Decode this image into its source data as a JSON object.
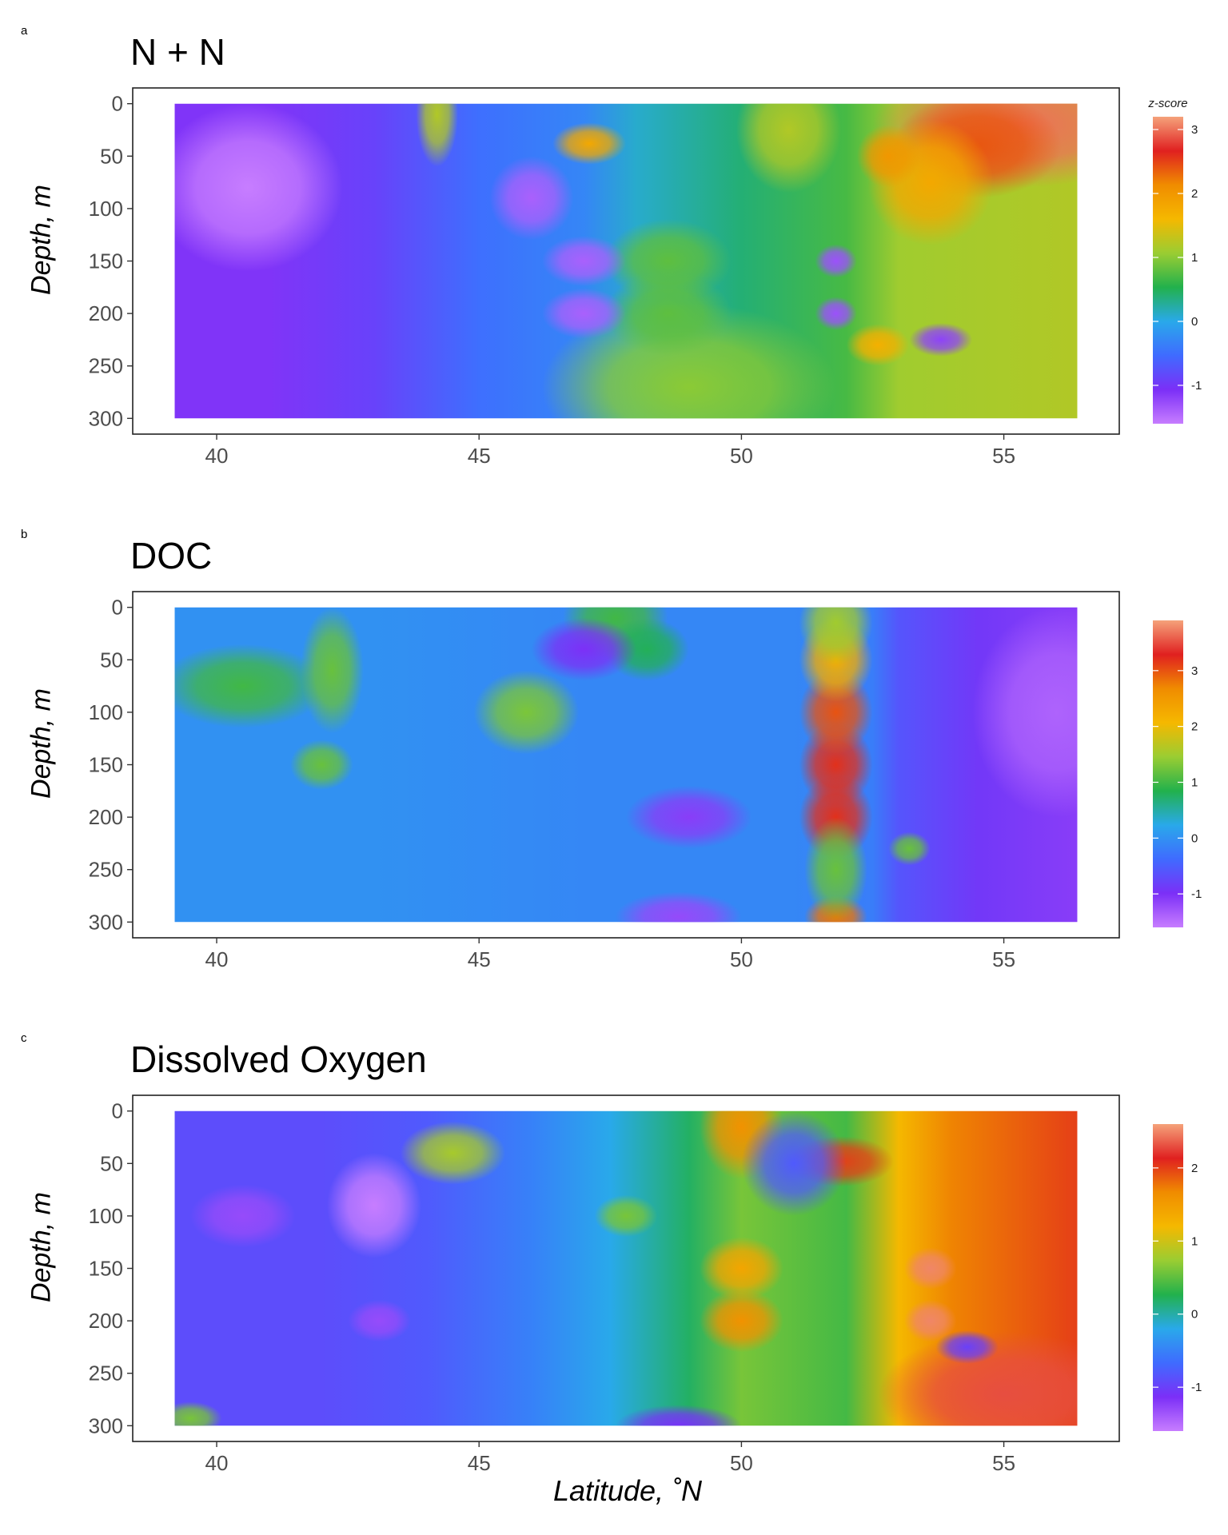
{
  "figure": {
    "xlabel": "Latitude, ˚N",
    "colorbar_title": "z-score"
  },
  "colors": {
    "scale": [
      "#c77dff",
      "#7b2ff7",
      "#3f6bff",
      "#29a9ea",
      "#22b14c",
      "#9acd32",
      "#f5b800",
      "#f08c00",
      "#e02020",
      "#f5a27a"
    ]
  },
  "chart_data": [
    {
      "panel_letter": "a",
      "type": "heatmap",
      "title": "N + N",
      "xlabel": "",
      "ylabel": "Depth, m",
      "x_ticks": [
        40,
        45,
        50,
        55
      ],
      "y_ticks": [
        0,
        50,
        100,
        150,
        200,
        250,
        300
      ],
      "xlim": [
        38.4,
        57.2
      ],
      "ylim": [
        315,
        -15
      ],
      "colorbar_ticks": [
        3,
        2,
        1,
        0,
        -1
      ],
      "zlim": [
        -1.6,
        3.2
      ],
      "background": [
        {
          "lat": 39.2,
          "z": -1.1
        },
        {
          "lat": 41.0,
          "z": -1.1
        },
        {
          "lat": 43.0,
          "z": -0.9
        },
        {
          "lat": 45.0,
          "z": -0.5
        },
        {
          "lat": 47.0,
          "z": -0.3
        },
        {
          "lat": 48.0,
          "z": 0.1
        },
        {
          "lat": 50.0,
          "z": 0.4
        },
        {
          "lat": 52.0,
          "z": 0.7
        },
        {
          "lat": 53.0,
          "z": 1.1
        },
        {
          "lat": 56.4,
          "z": 1.2
        }
      ],
      "hotspots": [
        {
          "lat": 55.3,
          "depth": 20,
          "z": 3.0,
          "dlat": 1.4,
          "ddepth": 30
        },
        {
          "lat": 54.5,
          "depth": 40,
          "z": 2.4,
          "dlat": 0.8,
          "ddepth": 25
        },
        {
          "lat": 53.6,
          "depth": 75,
          "z": 1.8,
          "dlat": 0.6,
          "ddepth": 30
        },
        {
          "lat": 52.8,
          "depth": 50,
          "z": 2.0,
          "dlat": 0.3,
          "ddepth": 15
        },
        {
          "lat": 52.6,
          "depth": 230,
          "z": 1.7,
          "dlat": 0.3,
          "ddepth": 10
        },
        {
          "lat": 47.1,
          "depth": 38,
          "z": 1.8,
          "dlat": 0.35,
          "ddepth": 10
        },
        {
          "lat": 50.9,
          "depth": 25,
          "z": 1.2,
          "dlat": 0.5,
          "ddepth": 30
        },
        {
          "lat": 44.2,
          "depth": 10,
          "z": 1.2,
          "dlat": 0.2,
          "ddepth": 25
        },
        {
          "lat": 49.0,
          "depth": 270,
          "z": 1.0,
          "dlat": 1.4,
          "ddepth": 40
        },
        {
          "lat": 48.6,
          "depth": 150,
          "z": 0.8,
          "dlat": 0.6,
          "ddepth": 20
        },
        {
          "lat": 48.6,
          "depth": 200,
          "z": 0.8,
          "dlat": 0.6,
          "ddepth": 20
        },
        {
          "lat": 40.6,
          "depth": 80,
          "z": -1.6,
          "dlat": 0.9,
          "ddepth": 40
        },
        {
          "lat": 46.0,
          "depth": 90,
          "z": -1.4,
          "dlat": 0.4,
          "ddepth": 20
        },
        {
          "lat": 47.0,
          "depth": 150,
          "z": -1.4,
          "dlat": 0.4,
          "ddepth": 12
        },
        {
          "lat": 47.0,
          "depth": 200,
          "z": -1.4,
          "dlat": 0.4,
          "ddepth": 12
        },
        {
          "lat": 51.8,
          "depth": 150,
          "z": -1.3,
          "dlat": 0.2,
          "ddepth": 8
        },
        {
          "lat": 51.8,
          "depth": 200,
          "z": -1.3,
          "dlat": 0.2,
          "ddepth": 8
        },
        {
          "lat": 53.8,
          "depth": 225,
          "z": -1.2,
          "dlat": 0.3,
          "ddepth": 8
        }
      ]
    },
    {
      "panel_letter": "b",
      "type": "heatmap",
      "title": "DOC",
      "xlabel": "",
      "ylabel": "Depth, m",
      "x_ticks": [
        40,
        45,
        50,
        55
      ],
      "y_ticks": [
        0,
        50,
        100,
        150,
        200,
        250,
        300
      ],
      "xlim": [
        38.4,
        57.2
      ],
      "ylim": [
        315,
        -15
      ],
      "colorbar_ticks": [
        3,
        2,
        1,
        0,
        -1
      ],
      "zlim": [
        -1.6,
        3.9
      ],
      "background": [
        {
          "lat": 39.2,
          "z": 0.0
        },
        {
          "lat": 43.0,
          "z": 0.0
        },
        {
          "lat": 47.0,
          "z": -0.1
        },
        {
          "lat": 49.0,
          "z": -0.1
        },
        {
          "lat": 51.0,
          "z": -0.1
        },
        {
          "lat": 52.5,
          "z": -0.2
        },
        {
          "lat": 53.0,
          "z": -0.6
        },
        {
          "lat": 54.5,
          "z": -0.9
        },
        {
          "lat": 56.4,
          "z": -1.1
        }
      ],
      "hotspots": [
        {
          "lat": 51.8,
          "depth": 150,
          "z": 3.2,
          "dlat": 0.35,
          "ddepth": 20
        },
        {
          "lat": 51.8,
          "depth": 200,
          "z": 3.2,
          "dlat": 0.35,
          "ddepth": 20
        },
        {
          "lat": 51.8,
          "depth": 100,
          "z": 3.0,
          "dlat": 0.35,
          "ddepth": 20
        },
        {
          "lat": 51.8,
          "depth": 50,
          "z": 2.2,
          "dlat": 0.35,
          "ddepth": 20
        },
        {
          "lat": 51.8,
          "depth": 295,
          "z": 2.8,
          "dlat": 0.3,
          "ddepth": 10
        },
        {
          "lat": 51.8,
          "depth": 15,
          "z": 1.5,
          "dlat": 0.35,
          "ddepth": 20
        },
        {
          "lat": 51.8,
          "depth": 250,
          "z": 1.2,
          "dlat": 0.3,
          "ddepth": 25
        },
        {
          "lat": 45.9,
          "depth": 100,
          "z": 1.3,
          "dlat": 0.5,
          "ddepth": 20
        },
        {
          "lat": 40.5,
          "depth": 75,
          "z": 1.0,
          "dlat": 0.8,
          "ddepth": 20
        },
        {
          "lat": 42.2,
          "depth": 60,
          "z": 1.2,
          "dlat": 0.3,
          "ddepth": 30
        },
        {
          "lat": 42.0,
          "depth": 150,
          "z": 1.2,
          "dlat": 0.3,
          "ddepth": 12
        },
        {
          "lat": 47.6,
          "depth": 10,
          "z": 1.0,
          "dlat": 0.5,
          "ddepth": 20
        },
        {
          "lat": 48.2,
          "depth": 40,
          "z": 0.8,
          "dlat": 0.4,
          "ddepth": 15
        },
        {
          "lat": 53.2,
          "depth": 230,
          "z": 1.2,
          "dlat": 0.2,
          "ddepth": 8
        },
        {
          "lat": 49.0,
          "depth": 200,
          "z": -1.1,
          "dlat": 0.6,
          "ddepth": 15
        },
        {
          "lat": 48.8,
          "depth": 295,
          "z": -1.2,
          "dlat": 0.6,
          "ddepth": 12
        },
        {
          "lat": 47.0,
          "depth": 40,
          "z": -1.0,
          "dlat": 0.5,
          "ddepth": 15
        },
        {
          "lat": 56.0,
          "depth": 100,
          "z": -1.4,
          "dlat": 0.8,
          "ddepth": 50
        }
      ]
    },
    {
      "panel_letter": "c",
      "type": "heatmap",
      "title": "Dissolved Oxygen",
      "xlabel": "Latitude, ˚N",
      "ylabel": "Depth, m",
      "x_ticks": [
        40,
        45,
        50,
        55
      ],
      "y_ticks": [
        0,
        50,
        100,
        150,
        200,
        250,
        300
      ],
      "xlim": [
        38.4,
        57.2
      ],
      "ylim": [
        315,
        -15
      ],
      "colorbar_ticks": [
        2,
        1,
        0,
        -1
      ],
      "zlim": [
        -1.6,
        2.6
      ],
      "background": [
        {
          "lat": 39.2,
          "z": -0.9
        },
        {
          "lat": 42.0,
          "z": -0.9
        },
        {
          "lat": 44.0,
          "z": -0.8
        },
        {
          "lat": 46.0,
          "z": -0.5
        },
        {
          "lat": 47.5,
          "z": -0.2
        },
        {
          "lat": 49.0,
          "z": 0.2
        },
        {
          "lat": 50.0,
          "z": 0.6
        },
        {
          "lat": 52.0,
          "z": 0.4
        },
        {
          "lat": 53.0,
          "z": 1.2
        },
        {
          "lat": 54.0,
          "z": 1.7
        },
        {
          "lat": 56.4,
          "z": 2.0
        }
      ],
      "hotspots": [
        {
          "lat": 50.0,
          "depth": 15,
          "z": 1.6,
          "dlat": 0.4,
          "ddepth": 25
        },
        {
          "lat": 50.0,
          "depth": 150,
          "z": 1.4,
          "dlat": 0.4,
          "ddepth": 15
        },
        {
          "lat": 50.0,
          "depth": 200,
          "z": 1.6,
          "dlat": 0.4,
          "ddepth": 15
        },
        {
          "lat": 51.9,
          "depth": 48,
          "z": 2.0,
          "dlat": 0.5,
          "ddepth": 12
        },
        {
          "lat": 53.6,
          "depth": 150,
          "z": 2.5,
          "dlat": 0.25,
          "ddepth": 10
        },
        {
          "lat": 53.6,
          "depth": 200,
          "z": 2.5,
          "dlat": 0.25,
          "ddepth": 10
        },
        {
          "lat": 55.0,
          "depth": 270,
          "z": 2.3,
          "dlat": 1.2,
          "ddepth": 30
        },
        {
          "lat": 44.5,
          "depth": 40,
          "z": 0.8,
          "dlat": 0.5,
          "ddepth": 15
        },
        {
          "lat": 47.8,
          "depth": 100,
          "z": 0.6,
          "dlat": 0.3,
          "ddepth": 10
        },
        {
          "lat": 43.0,
          "depth": 90,
          "z": -1.6,
          "dlat": 0.45,
          "ddepth": 25
        },
        {
          "lat": 43.1,
          "depth": 200,
          "z": -1.3,
          "dlat": 0.3,
          "ddepth": 10
        },
        {
          "lat": 40.5,
          "depth": 100,
          "z": -1.3,
          "dlat": 0.5,
          "ddepth": 15
        },
        {
          "lat": 48.8,
          "depth": 300,
          "z": -1.1,
          "dlat": 0.6,
          "ddepth": 10
        },
        {
          "lat": 51.0,
          "depth": 50,
          "z": -0.8,
          "dlat": 0.5,
          "ddepth": 25
        },
        {
          "lat": 54.3,
          "depth": 225,
          "z": -1.0,
          "dlat": 0.3,
          "ddepth": 8
        },
        {
          "lat": 39.5,
          "depth": 293,
          "z": 0.6,
          "dlat": 0.3,
          "ddepth": 8
        }
      ]
    }
  ]
}
